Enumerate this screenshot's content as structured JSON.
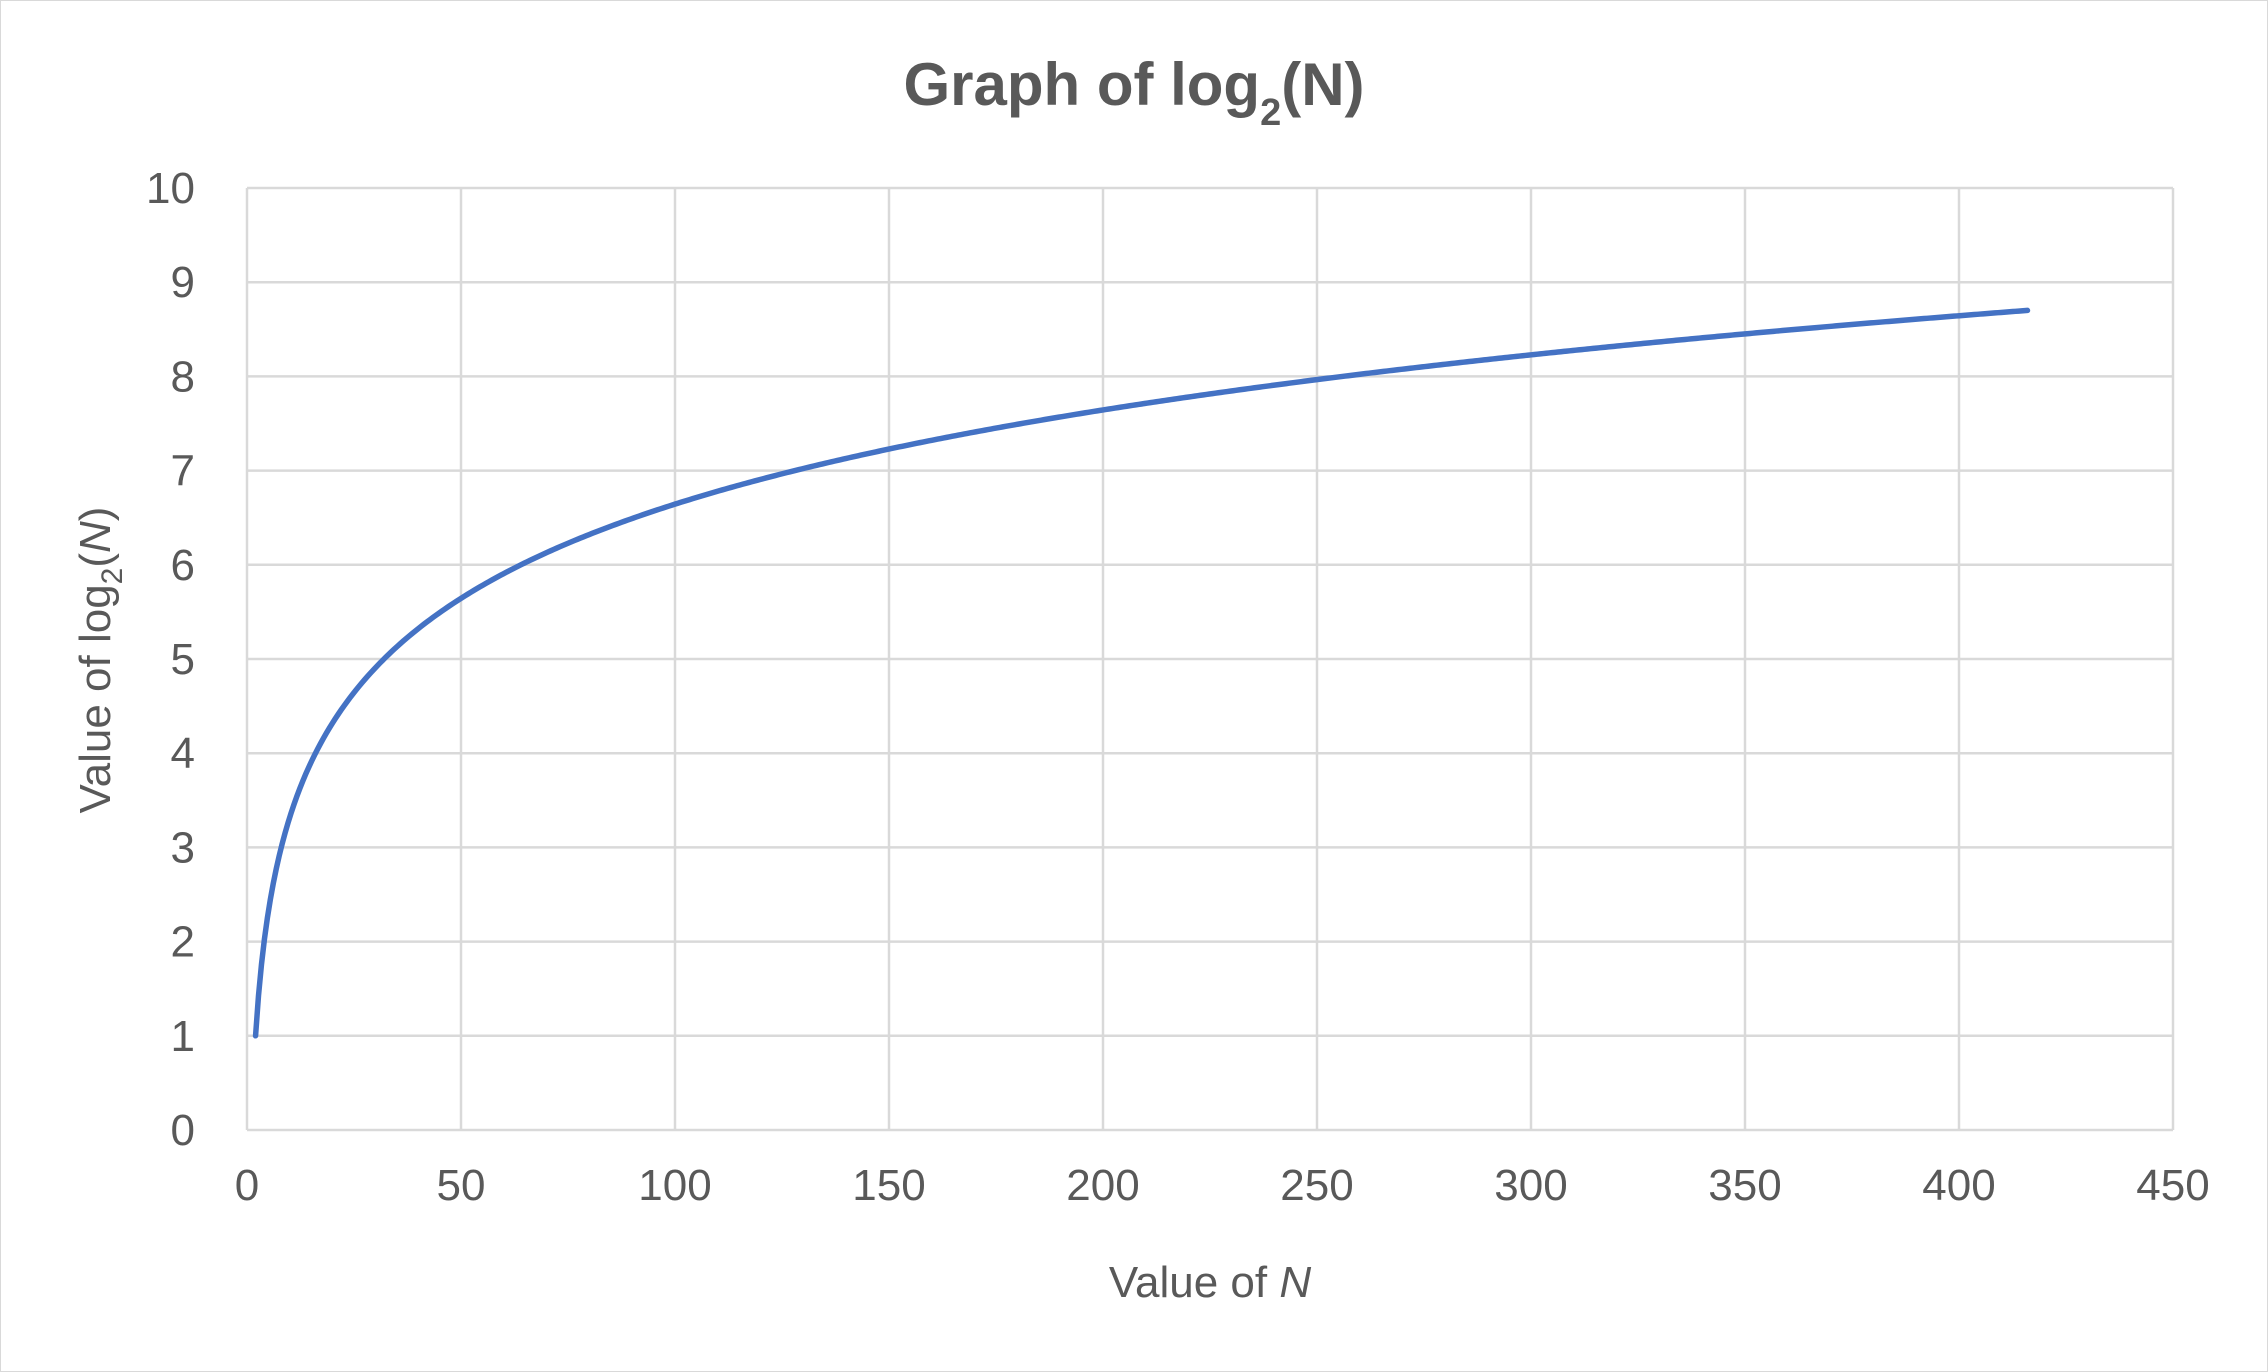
{
  "chart_data": {
    "type": "line",
    "title": {
      "main": "Graph of log",
      "subscript": "2",
      "suffix": "(N)"
    },
    "xlabel": {
      "prefix": "Value of ",
      "var": "N"
    },
    "ylabel": {
      "prefix": "Value of log",
      "subscript": "2",
      "open": "(",
      "var": "N",
      "close": ")"
    },
    "xlim": [
      0,
      450
    ],
    "ylim": [
      0,
      10
    ],
    "xticks": [
      "0",
      "50",
      "100",
      "150",
      "200",
      "250",
      "300",
      "350",
      "400",
      "450"
    ],
    "yticks": [
      "0",
      "1",
      "2",
      "3",
      "4",
      "5",
      "6",
      "7",
      "8",
      "9",
      "10"
    ],
    "grid": true,
    "legend": "none",
    "series": [
      {
        "function": "log2(N)",
        "color": "#4472c4",
        "x": [
          2,
          3,
          4,
          6,
          8,
          10,
          12,
          16,
          20,
          25,
          30,
          40,
          50,
          60,
          75,
          90,
          100,
          125,
          150,
          175,
          200,
          225,
          250,
          275,
          300,
          325,
          350,
          375,
          400,
          416
        ],
        "y": [
          1,
          1.585,
          2,
          2.585,
          3,
          3.322,
          3.585,
          4,
          4.322,
          4.644,
          4.907,
          5.322,
          5.644,
          5.907,
          6.229,
          6.492,
          6.644,
          6.966,
          7.229,
          7.451,
          7.644,
          7.814,
          7.966,
          8.103,
          8.229,
          8.344,
          8.451,
          8.551,
          8.644,
          8.7
        ]
      }
    ]
  }
}
